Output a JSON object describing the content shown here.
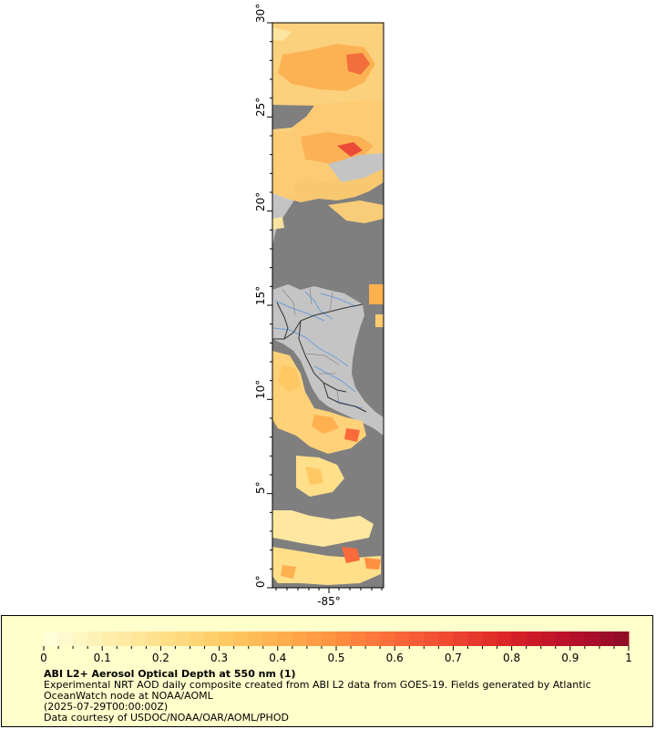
{
  "map": {
    "lat_ticks": [
      "0°",
      "5°",
      "10°",
      "15°",
      "20°",
      "25°",
      "30°"
    ],
    "lon_ticks": [
      "-85°"
    ],
    "lat_range": [
      0,
      30
    ],
    "colors": {
      "ocean": "#7f7f7f",
      "land": "#c4c4c4",
      "borders": "#333333",
      "rivers": "#6f9fd8"
    }
  },
  "legend": {
    "title": "ABI L2+ Aerosol Optical Depth at 550 nm (1)",
    "description": "Experimental NRT AOD daily composite created from ABI L2 data from GOES-19. Fields generated by Atlantic OceanWatch node at NOAA/AOML",
    "time": "(2025-07-29T00:00:00Z)",
    "credit": "Data courtesy of USDOC/NOAA/OAR/AOML/PHOD",
    "colorbar_ticks": [
      "0",
      "0.1",
      "0.2",
      "0.3",
      "0.4",
      "0.5",
      "0.6",
      "0.7",
      "0.8",
      "0.9",
      "1"
    ],
    "colorbar_range": [
      0,
      1
    ],
    "colorbar_colors": [
      "#ffffe0",
      "#fff0b0",
      "#ffe08a",
      "#ffcc66",
      "#ffb04f",
      "#ff9040",
      "#fb6a3a",
      "#ee4530",
      "#d92127",
      "#b80f2a",
      "#8c0b26"
    ],
    "background": "#ffffcc"
  }
}
